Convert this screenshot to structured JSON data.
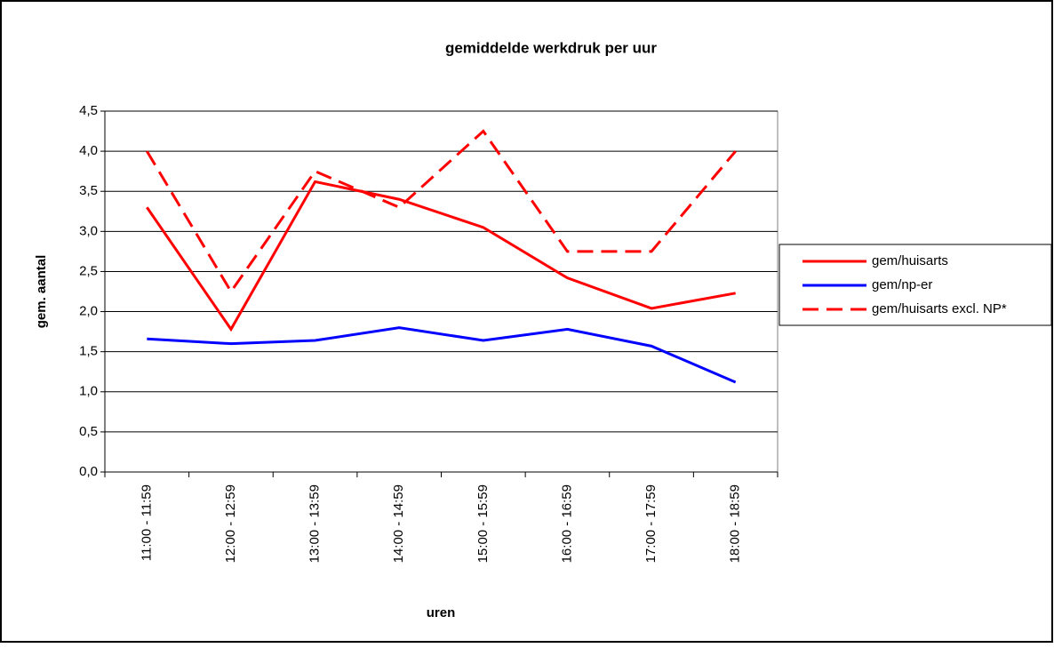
{
  "chart_data": {
    "type": "line",
    "title": "gemiddelde werkdruk per uur",
    "x_label": "uren",
    "y_label": "gem. aantal",
    "categories": [
      "11:00 - 11:59",
      "12:00 - 12:59",
      "13:00 - 13:59",
      "14:00 - 14:59",
      "15:00 - 15:59",
      "16:00 - 16:59",
      "17:00 - 17:59",
      "18:00 - 18:59"
    ],
    "series": [
      {
        "name": "gem/huisarts",
        "color": "#ff0000",
        "dashed": false,
        "values": [
          3.3,
          1.78,
          3.62,
          3.4,
          3.05,
          2.42,
          2.04,
          2.23
        ]
      },
      {
        "name": "gem/np-er",
        "color": "#0000ff",
        "dashed": false,
        "values": [
          1.66,
          1.6,
          1.64,
          1.8,
          1.64,
          1.78,
          1.57,
          1.12
        ]
      },
      {
        "name": "gem/huisarts excl. NP*",
        "color": "#ff0000",
        "dashed": true,
        "values": [
          4.0,
          2.25,
          3.75,
          3.3,
          4.25,
          2.75,
          2.75,
          4.0
        ]
      }
    ],
    "ylim": [
      0,
      4.5
    ],
    "yticks": [
      {
        "value": 0,
        "label": "0,0"
      },
      {
        "value": 0.5,
        "label": "0,5"
      },
      {
        "value": 1,
        "label": "1,0"
      },
      {
        "value": 1.5,
        "label": "1,5"
      },
      {
        "value": 2,
        "label": "2,0"
      },
      {
        "value": 2.5,
        "label": "2,5"
      },
      {
        "value": 3,
        "label": "3,0"
      },
      {
        "value": 3.5,
        "label": "3,5"
      },
      {
        "value": 4,
        "label": "4,0"
      },
      {
        "value": 4.5,
        "label": "4,5"
      }
    ],
    "grid": true,
    "legend": "right"
  }
}
